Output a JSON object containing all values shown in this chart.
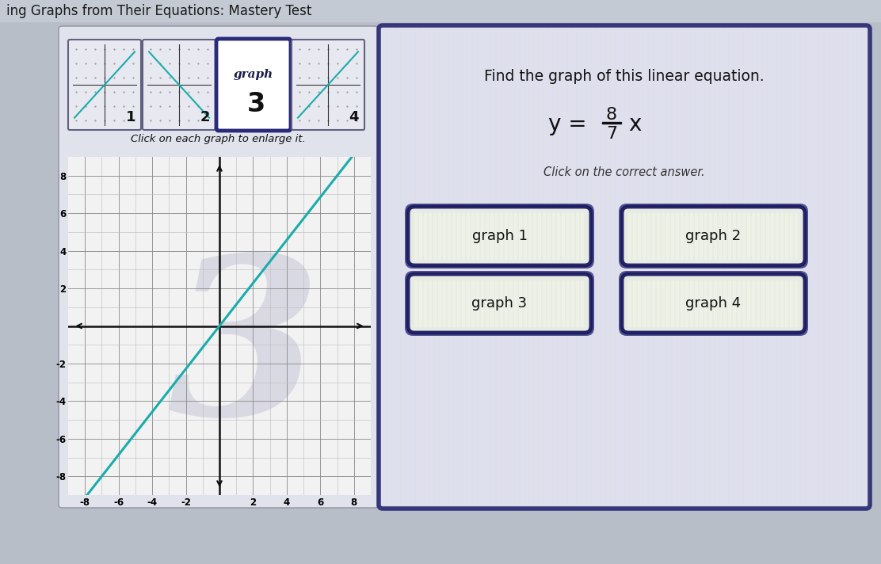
{
  "title_text": "ing Graphs from Their Equations: Mastery Test",
  "title_fontsize": 12,
  "bg_color": "#b8bec8",
  "left_panel_bg": "#d8dce6",
  "right_panel_bg": "#e4e4ee",
  "right_panel_border": "#2a2a72",
  "right_panel_stripe": "#d8d8e8",
  "equation_label": "Find the graph of this linear equation.",
  "click_label": "Click on the correct answer.",
  "graph_buttons": [
    "graph 1",
    "graph 2",
    "graph 3",
    "graph 4"
  ],
  "button_bg": "#f0f4e8",
  "button_border": "#1a1a60",
  "button_stripe": "#e8ecd8",
  "small_graph_label": "Click on each graph to enlarge it.",
  "line_color": "#1aacac",
  "line_slope": 1.142857,
  "axis_color": "#111111",
  "watermark_color": "#9090b8",
  "graph_bg": "#f0f0f0",
  "small_graphs": [
    {
      "slope": 1.142857,
      "label": "1",
      "selected": false
    },
    {
      "slope": -1.142857,
      "label": "2",
      "selected": false
    },
    {
      "slope": 1.142857,
      "label": "3",
      "selected": true
    },
    {
      "slope": 1.142857,
      "label": "4",
      "selected": false
    }
  ]
}
